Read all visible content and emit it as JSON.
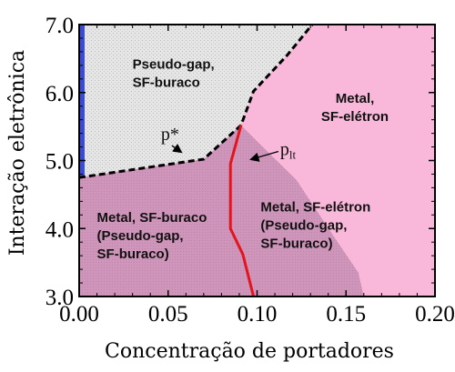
{
  "chart_data": {
    "type": "area",
    "xlabel": "Concentração de portadores",
    "ylabel": "Interação eletrônica",
    "xlim": [
      0.0,
      0.2
    ],
    "ylim": [
      3.0,
      7.0
    ],
    "xticks": [
      "0.00",
      "0.05",
      "0.10",
      "0.15",
      "0.20"
    ],
    "yticks": [
      "3.0",
      "4.0",
      "5.0",
      "6.0",
      "7.0"
    ],
    "grid": false,
    "colors": {
      "pink": "#f9b7d9",
      "gray_overlay": "#a07a95",
      "light_gray": "#e4e4e4",
      "blue_strip": "#3b4bd8",
      "red_line": "#e3141c",
      "frame": "#000000"
    },
    "regions": [
      {
        "label": [
          "Pseudo-gap,",
          "SF-buraco"
        ],
        "fill": "light_gray",
        "boundary": [
          [
            0.0,
            4.75
          ],
          [
            0.0,
            7.0
          ],
          [
            0.131,
            7.0
          ],
          [
            0.117,
            6.55
          ],
          [
            0.098,
            6.02
          ],
          [
            0.091,
            5.52
          ],
          [
            0.07,
            5.02
          ],
          [
            0.0,
            4.75
          ]
        ]
      },
      {
        "label": [
          "Metal, SF-buraco",
          "(Pseudo-gap,",
          "SF-buraco)"
        ],
        "fill": "gray_overlay",
        "boundary": [
          [
            0.0,
            3.0
          ],
          [
            0.0,
            4.75
          ],
          [
            0.07,
            5.02
          ],
          [
            0.091,
            5.52
          ],
          [
            0.085,
            4.95
          ],
          [
            0.085,
            4.0
          ],
          [
            0.092,
            3.62
          ],
          [
            0.098,
            3.0
          ]
        ]
      },
      {
        "label": [
          "Metal, SF-elétron",
          "(Pseudo-gap,",
          "SF-buraco)"
        ],
        "fill": "gray_overlay",
        "boundary": [
          [
            0.098,
            3.0
          ],
          [
            0.092,
            3.62
          ],
          [
            0.085,
            4.0
          ],
          [
            0.085,
            4.95
          ],
          [
            0.091,
            5.52
          ],
          [
            0.104,
            5.18
          ],
          [
            0.122,
            4.72
          ],
          [
            0.142,
            3.93
          ],
          [
            0.157,
            3.35
          ],
          [
            0.16,
            3.0
          ]
        ]
      },
      {
        "label": [
          "Metal,",
          "SF-elétron"
        ],
        "fill": "pink",
        "boundary": [
          [
            0.131,
            7.0
          ],
          [
            0.2,
            7.0
          ],
          [
            0.2,
            3.0
          ],
          [
            0.16,
            3.0
          ],
          [
            0.157,
            3.35
          ],
          [
            0.142,
            3.93
          ],
          [
            0.122,
            4.72
          ],
          [
            0.104,
            5.18
          ],
          [
            0.091,
            5.52
          ],
          [
            0.098,
            6.02
          ],
          [
            0.117,
            6.55
          ],
          [
            0.131,
            7.0
          ]
        ]
      }
    ],
    "series": [
      {
        "name": "p*",
        "style": "dashed",
        "color": "frame",
        "x": [
          0.0,
          0.07,
          0.091,
          0.098,
          0.117,
          0.131
        ],
        "y": [
          4.75,
          5.02,
          5.52,
          6.02,
          6.55,
          7.0
        ]
      },
      {
        "name": "p_lt",
        "style": "solid",
        "color": "red_line",
        "x": [
          0.098,
          0.092,
          0.085,
          0.085,
          0.091
        ],
        "y": [
          3.0,
          3.62,
          4.0,
          4.95,
          5.52
        ]
      }
    ],
    "annotations": [
      {
        "text": "p*",
        "x": 0.046,
        "y": 5.3,
        "arrow_to": [
          0.057,
          5.13
        ]
      },
      {
        "text": "p",
        "sub": "lt",
        "x": 0.113,
        "y": 5.08,
        "arrow_to": [
          0.097,
          5.02
        ]
      }
    ]
  }
}
